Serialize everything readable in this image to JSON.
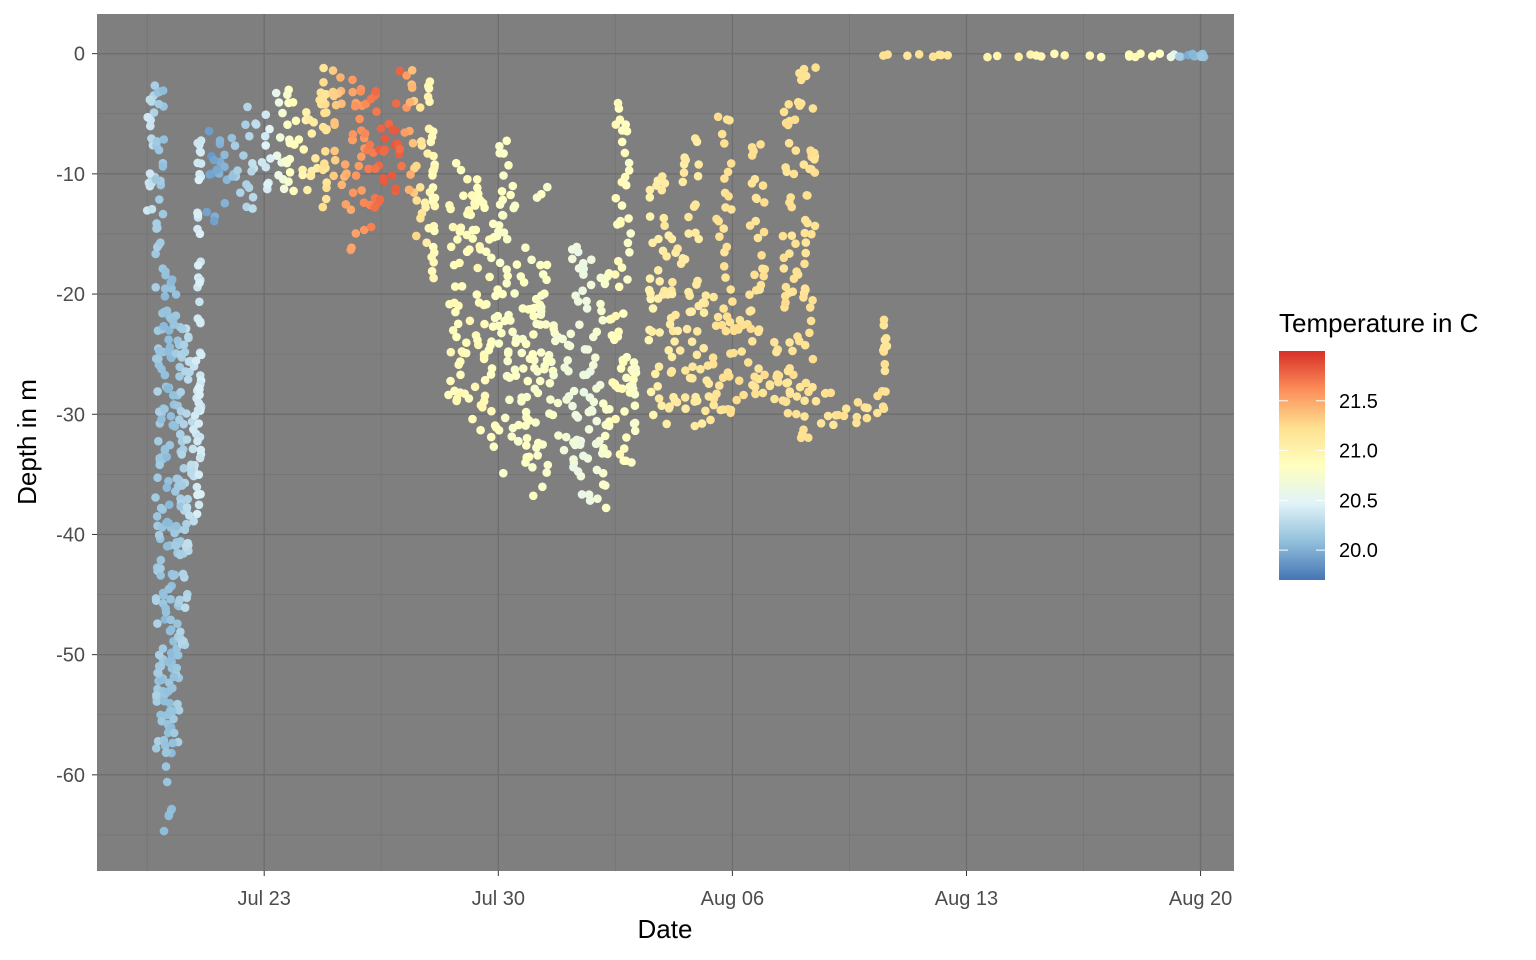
{
  "chart_data": {
    "type": "scatter",
    "title": "",
    "xlabel": "Date",
    "ylabel": "Depth in m",
    "x_range": [
      "2023-07-18",
      "2023-08-21"
    ],
    "ylim": [
      -68,
      3.3
    ],
    "x_ticks": [
      {
        "date": "2023-07-23",
        "label": "Jul 23"
      },
      {
        "date": "2023-07-30",
        "label": "Jul 30"
      },
      {
        "date": "2023-08-06",
        "label": "Aug 06"
      },
      {
        "date": "2023-08-13",
        "label": "Aug 13"
      },
      {
        "date": "2023-08-20",
        "label": "Aug 20"
      }
    ],
    "y_ticks": [
      0,
      -10,
      -20,
      -30,
      -40,
      -50,
      -60
    ],
    "y_tick_labels": [
      "0",
      "-10",
      "-20",
      "-30",
      "-40",
      "-50",
      "-60"
    ],
    "panel_background": "#7f7f7f",
    "grid": true,
    "legend": {
      "title": "Temperature in C",
      "position": "right",
      "range": [
        19.7,
        22.0
      ],
      "ticks": [
        20.0,
        20.5,
        21.0,
        21.5
      ],
      "tick_labels": [
        "20.0",
        "20.5",
        "21.0",
        "21.5"
      ],
      "colors": [
        "#4575b4",
        "#91bfdb",
        "#e0f3f8",
        "#ffffbf",
        "#fee090",
        "#fc8d59",
        "#d73027"
      ]
    },
    "series": [
      {
        "x": [
          "2023-07-19T12:00",
          "2023-07-19T18:00",
          "2023-07-20T00:00",
          "2023-07-20T06:00",
          "2023-07-20T12:00",
          "2023-07-20T18:00",
          "2023-07-21T00:00"
        ],
        "y_top": [
          -2,
          -3,
          -17,
          -20,
          -22,
          -25,
          -6
        ],
        "y_bottom": [
          -14,
          -58,
          -65,
          -58,
          -50,
          -40,
          -38
        ],
        "temperature": [
          20.4,
          20.2,
          20.1,
          20.1,
          20.2,
          20.3,
          20.4
        ]
      },
      {
        "x": [
          "2023-07-21T06:00",
          "2023-07-21T18:00",
          "2023-07-22T06:00",
          "2023-07-22T18:00",
          "2023-07-23T06:00",
          "2023-07-23T18:00",
          "2023-07-24T06:00",
          "2023-07-24T18:00"
        ],
        "y_top": [
          -6,
          -7,
          -4,
          -5,
          -2,
          -4,
          -3,
          -1
        ],
        "y_bottom": [
          -14,
          -13,
          -13,
          -12,
          -12,
          -12,
          -12,
          -13
        ],
        "temperature": [
          19.9,
          20.0,
          20.2,
          20.3,
          20.5,
          20.8,
          21.0,
          21.2
        ]
      },
      {
        "x": [
          "2023-07-25T00:00",
          "2023-07-25T12:00",
          "2023-07-26T00:00",
          "2023-07-26T12:00",
          "2023-07-27T00:00",
          "2023-07-27T12:00",
          "2023-07-28T00:00"
        ],
        "y_top": [
          -1,
          -2,
          -1,
          -3,
          -1,
          -2,
          -6
        ],
        "y_bottom": [
          -13,
          -17,
          -15,
          -12,
          -13,
          -16,
          -19
        ],
        "temperature": [
          21.3,
          21.5,
          21.6,
          21.8,
          21.8,
          21.3,
          20.9
        ]
      },
      {
        "x": [
          "2023-07-28T12:00",
          "2023-07-29T00:00",
          "2023-07-29T12:00",
          "2023-07-30T00:00",
          "2023-07-30T12:00",
          "2023-07-31T00:00",
          "2023-07-31T12:00",
          "2023-08-01T00:00",
          "2023-08-01T12:00",
          "2023-08-02T00:00",
          "2023-08-02T12:00",
          "2023-08-03T00:00"
        ],
        "y_top": [
          -8,
          -10,
          -12,
          -7,
          -15,
          -11,
          -22,
          -16,
          -17,
          -18,
          -4,
          -24
        ],
        "y_bottom": [
          -30,
          -32,
          -33,
          -35,
          -35,
          -37,
          -33,
          -36,
          -38,
          -38,
          -35,
          -33
        ],
        "temperature": [
          20.9,
          20.9,
          20.9,
          20.8,
          20.8,
          20.8,
          20.8,
          20.7,
          20.6,
          20.7,
          20.9,
          20.8
        ]
      },
      {
        "x": [
          "2023-08-03T12:00",
          "2023-08-04T00:00",
          "2023-08-04T12:00",
          "2023-08-05T00:00",
          "2023-08-05T12:00",
          "2023-08-06T00:00",
          "2023-08-06T12:00",
          "2023-08-07T00:00",
          "2023-08-07T12:00",
          "2023-08-08T00:00",
          "2023-08-08T12:00",
          "2023-08-09T00:00",
          "2023-08-09T12:00",
          "2023-08-10T00:00",
          "2023-08-10T12:00"
        ],
        "y_top": [
          -10,
          -15,
          -7,
          -20,
          -5,
          -22,
          -6,
          -24,
          -1,
          -1,
          -28,
          -29,
          -29,
          -28,
          -22
        ],
        "y_bottom": [
          -31,
          -32,
          -31,
          -31,
          -30,
          -30,
          -29,
          -30,
          -30,
          -32,
          -31,
          -32,
          -31,
          -31,
          -30
        ],
        "temperature": [
          21.0,
          21.1,
          21.1,
          21.1,
          21.2,
          21.2,
          21.2,
          21.2,
          21.2,
          21.2,
          21.2,
          21.2,
          21.2,
          21.2,
          21.2
        ]
      },
      {
        "x": [
          "2023-08-10T12:00",
          "2023-08-12T00:00",
          "2023-08-13T12:00",
          "2023-08-15T00:00",
          "2023-08-16T12:00",
          "2023-08-18T00:00",
          "2023-08-19T00:00",
          "2023-08-19T12:00",
          "2023-08-20T00:00"
        ],
        "y_top": [
          0,
          0,
          0,
          0,
          0,
          0,
          0,
          0,
          0
        ],
        "y_bottom": [
          -0.3,
          -0.3,
          -0.3,
          -0.3,
          -0.3,
          -0.3,
          -0.3,
          -0.3,
          -0.3
        ],
        "temperature": [
          21.2,
          21.2,
          21.0,
          21.0,
          20.9,
          20.9,
          20.8,
          19.9,
          20.1
        ]
      }
    ]
  }
}
